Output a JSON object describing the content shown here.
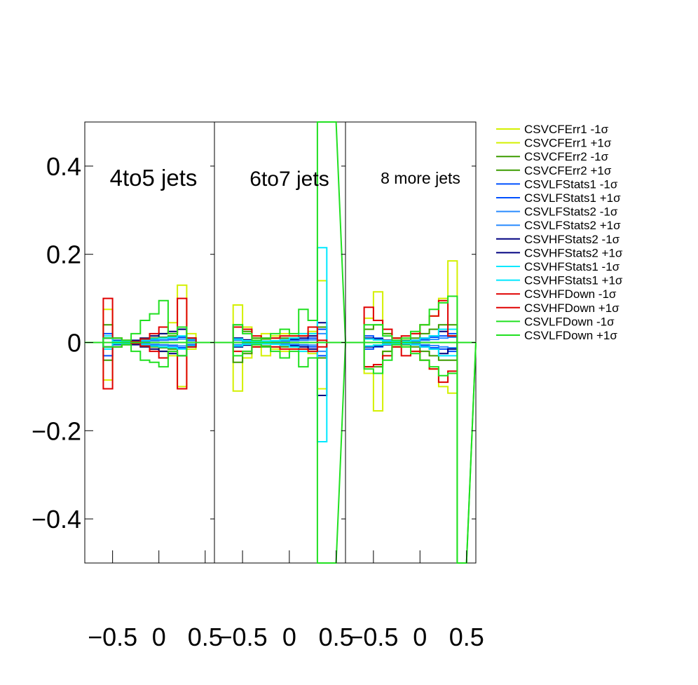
{
  "chart_data": {
    "type": "line",
    "ylim": [
      -0.5,
      0.5
    ],
    "y_ticks": [
      {
        "value": 0.4,
        "label": "0.4"
      },
      {
        "value": 0.2,
        "label": "0.2"
      },
      {
        "value": 0,
        "label": "0"
      },
      {
        "value": -0.2,
        "label": "−0.2"
      },
      {
        "value": -0.4,
        "label": "−0.4"
      }
    ],
    "x_ticks": [
      {
        "value": -0.5,
        "label": "−0.5"
      },
      {
        "value": 0,
        "label": "0"
      },
      {
        "value": 0.5,
        "label": "0.5"
      }
    ],
    "xlim": [
      -0.8,
      0.6
    ],
    "bin_edges": [
      -0.8,
      -0.6,
      -0.5,
      -0.4,
      -0.3,
      -0.2,
      -0.1,
      0.0,
      0.1,
      0.2,
      0.3,
      0.4,
      0.5,
      0.6
    ],
    "legend_position": "right",
    "legend": [
      {
        "label": "CSVCFErr1 -1σ",
        "color": "#d4f000"
      },
      {
        "label": "CSVCFErr1 +1σ",
        "color": "#d4f000"
      },
      {
        "label": "CSVCFErr2 -1σ",
        "color": "#3c9c00"
      },
      {
        "label": "CSVCFErr2 +1σ",
        "color": "#3c9c00"
      },
      {
        "label": "CSVLFStats1 -1σ",
        "color": "#0050ff"
      },
      {
        "label": "CSVLFStats1 +1σ",
        "color": "#0050ff"
      },
      {
        "label": "CSVLFStats2 -1σ",
        "color": "#2a8cff"
      },
      {
        "label": "CSVLFStats2 +1σ",
        "color": "#2a8cff"
      },
      {
        "label": "CSVHFStats2 -1σ",
        "color": "#000080"
      },
      {
        "label": "CSVHFStats2 +1σ",
        "color": "#000080"
      },
      {
        "label": "CSVHFStats1 -1σ",
        "color": "#00e8ff"
      },
      {
        "label": "CSVHFStats1 +1σ",
        "color": "#00e8ff"
      },
      {
        "label": "CSVHFDown -1σ",
        "color": "#e00000"
      },
      {
        "label": "CSVHFDown +1σ",
        "color": "#e00000"
      },
      {
        "label": "CSVLFDown -1σ",
        "color": "#20e020"
      },
      {
        "label": "CSVLFDown +1σ",
        "color": "#20e020"
      }
    ],
    "panels": [
      {
        "label": "4to5 jets",
        "series": [
          {
            "color": "#d4f000",
            "values": [
              0,
              0.075,
              0.01,
              0.005,
              0.003,
              0.01,
              0.015,
              0.02,
              0.045,
              0.13,
              0.02,
              0
            ]
          },
          {
            "color": "#d4f000",
            "values": [
              0,
              -0.085,
              -0.01,
              -0.005,
              -0.003,
              -0.01,
              -0.015,
              -0.02,
              -0.03,
              -0.1,
              -0.015,
              0
            ]
          },
          {
            "color": "#3c9c00",
            "values": [
              0,
              0.04,
              0.01,
              0.005,
              0.003,
              0.008,
              0.01,
              0.012,
              0.015,
              0.03,
              0.01,
              0
            ]
          },
          {
            "color": "#3c9c00",
            "values": [
              0,
              -0.04,
              -0.01,
              -0.005,
              -0.003,
              -0.008,
              -0.01,
              -0.012,
              -0.015,
              -0.03,
              -0.01,
              0
            ]
          },
          {
            "color": "#0050ff",
            "values": [
              0,
              0.02,
              0.005,
              0.003,
              0.002,
              0.004,
              0.005,
              0.006,
              0.008,
              0.012,
              0.005,
              0
            ]
          },
          {
            "color": "#0050ff",
            "values": [
              0,
              -0.03,
              -0.005,
              -0.003,
              -0.002,
              -0.004,
              -0.005,
              -0.006,
              -0.008,
              -0.012,
              -0.005,
              0
            ]
          },
          {
            "color": "#2a8cff",
            "values": [
              0,
              0.01,
              0.003,
              0.002,
              0.001,
              0.003,
              0.004,
              0.005,
              0.006,
              0.008,
              0.004,
              0
            ]
          },
          {
            "color": "#2a8cff",
            "values": [
              0,
              -0.01,
              -0.003,
              -0.002,
              -0.001,
              -0.003,
              -0.004,
              -0.005,
              -0.006,
              -0.008,
              -0.004,
              0
            ]
          },
          {
            "color": "#000080",
            "values": [
              0,
              0.01,
              0.004,
              0.003,
              0.005,
              0.01,
              0.015,
              0.02,
              0.025,
              0.03,
              0.01,
              0
            ]
          },
          {
            "color": "#000080",
            "values": [
              0,
              -0.01,
              -0.004,
              -0.003,
              -0.005,
              -0.01,
              -0.015,
              -0.02,
              -0.025,
              -0.03,
              -0.01,
              0
            ]
          },
          {
            "color": "#00e8ff",
            "values": [
              0,
              0.015,
              0.003,
              0.002,
              0.002,
              0.005,
              0.008,
              0.01,
              0.012,
              0.015,
              0.008,
              0
            ]
          },
          {
            "color": "#00e8ff",
            "values": [
              0,
              -0.015,
              -0.003,
              -0.002,
              -0.002,
              -0.005,
              -0.008,
              -0.01,
              -0.012,
              -0.015,
              -0.008,
              0
            ]
          },
          {
            "color": "#e00000",
            "values": [
              0,
              0.1,
              0.01,
              0.005,
              0.002,
              0.008,
              0.02,
              0.035,
              0.02,
              0.1,
              0.01,
              0
            ]
          },
          {
            "color": "#e00000",
            "values": [
              0,
              -0.105,
              -0.01,
              -0.005,
              -0.002,
              -0.008,
              -0.02,
              -0.035,
              -0.02,
              -0.105,
              -0.01,
              0
            ]
          },
          {
            "color": "#20e020",
            "values": [
              0,
              0.01,
              0.01,
              0.005,
              0.02,
              0.05,
              0.065,
              0.095,
              0.02,
              0.035,
              0,
              0
            ]
          },
          {
            "color": "#20e020",
            "values": [
              0,
              -0.01,
              -0.01,
              -0.005,
              -0.02,
              -0.04,
              -0.045,
              -0.055,
              -0.02,
              -0.03,
              0,
              0
            ]
          }
        ]
      },
      {
        "label": "6to7 jets",
        "series": [
          {
            "color": "#d4f000",
            "values": [
              0,
              0.085,
              0.035,
              0.01,
              0.02,
              0.015,
              0.02,
              0.015,
              0.02,
              0.025,
              0.14,
              0
            ]
          },
          {
            "color": "#d4f000",
            "values": [
              0,
              -0.11,
              -0.035,
              -0.01,
              -0.03,
              -0.015,
              -0.02,
              -0.015,
              -0.02,
              -0.025,
              -0.105,
              0
            ]
          },
          {
            "color": "#3c9c00",
            "values": [
              0,
              0.04,
              0.025,
              0.01,
              0.008,
              0.01,
              0.01,
              0.01,
              0.015,
              0.02,
              0.035,
              0
            ]
          },
          {
            "color": "#3c9c00",
            "values": [
              0,
              -0.045,
              -0.025,
              -0.01,
              -0.008,
              -0.01,
              -0.01,
              -0.01,
              -0.015,
              -0.02,
              -0.035,
              0
            ]
          },
          {
            "color": "#0050ff",
            "values": [
              0,
              0.01,
              0.005,
              0.003,
              0.003,
              0.003,
              0.004,
              0.005,
              0.006,
              0.01,
              -0.03,
              0
            ]
          },
          {
            "color": "#0050ff",
            "values": [
              0,
              -0.01,
              -0.005,
              -0.003,
              -0.003,
              -0.003,
              -0.004,
              -0.005,
              -0.006,
              -0.01,
              0.03,
              0
            ]
          },
          {
            "color": "#2a8cff",
            "values": [
              0,
              0.005,
              0.003,
              0.002,
              0.002,
              0.002,
              0.003,
              0.004,
              0.005,
              0.006,
              0.02,
              0
            ]
          },
          {
            "color": "#2a8cff",
            "values": [
              0,
              -0.005,
              -0.003,
              -0.002,
              -0.002,
              -0.002,
              -0.003,
              -0.004,
              -0.005,
              -0.006,
              -0.02,
              0
            ]
          },
          {
            "color": "#000080",
            "values": [
              0,
              0.01,
              0.006,
              0.004,
              0.003,
              0.004,
              0.006,
              0.008,
              0.01,
              0.015,
              0.045,
              0
            ]
          },
          {
            "color": "#000080",
            "values": [
              0,
              -0.01,
              -0.006,
              -0.004,
              -0.003,
              -0.004,
              -0.006,
              -0.008,
              -0.01,
              -0.015,
              -0.12,
              0
            ]
          },
          {
            "color": "#00e8ff",
            "values": [
              0,
              0.008,
              0.004,
              0.003,
              0.003,
              0.004,
              0.006,
              0.01,
              0.02,
              0.02,
              0.215,
              0
            ]
          },
          {
            "color": "#00e8ff",
            "values": [
              0,
              -0.008,
              -0.004,
              -0.003,
              -0.003,
              -0.004,
              -0.006,
              -0.01,
              -0.02,
              -0.02,
              -0.225,
              0
            ]
          },
          {
            "color": "#e00000",
            "values": [
              0,
              0.035,
              0.03,
              0.015,
              0.01,
              0.01,
              0.015,
              0.015,
              0.015,
              0.035,
              -0.01,
              0
            ]
          },
          {
            "color": "#e00000",
            "values": [
              0,
              -0.02,
              -0.02,
              -0.01,
              -0.01,
              -0.01,
              -0.015,
              -0.015,
              -0.015,
              -0.02,
              0.005,
              0
            ]
          },
          {
            "color": "#20e020",
            "values": [
              0,
              0.04,
              0.02,
              0.005,
              0.01,
              0.02,
              0.03,
              0.02,
              0.075,
              0.05,
              0.55,
              0.55
            ]
          },
          {
            "color": "#20e020",
            "values": [
              0,
              -0.03,
              -0.02,
              -0.005,
              -0.01,
              -0.02,
              -0.035,
              -0.02,
              -0.055,
              -0.035,
              -0.55,
              -0.55
            ]
          }
        ]
      },
      {
        "label": "8 more jets",
        "series": [
          {
            "color": "#d4f000",
            "values": [
              0,
              0.055,
              0.115,
              0.02,
              0.01,
              0.01,
              0.02,
              0.04,
              0.06,
              0.1,
              0.185,
              0
            ]
          },
          {
            "color": "#d4f000",
            "values": [
              0,
              -0.07,
              -0.155,
              -0.02,
              -0.01,
              -0.01,
              -0.02,
              -0.04,
              -0.06,
              -0.1,
              -0.115,
              0
            ]
          },
          {
            "color": "#3c9c00",
            "values": [
              0,
              0.03,
              0.04,
              0.02,
              0.01,
              0.005,
              0.01,
              0.02,
              0.03,
              0.04,
              0.04,
              0
            ]
          },
          {
            "color": "#3c9c00",
            "values": [
              0,
              -0.055,
              -0.055,
              -0.02,
              -0.01,
              -0.005,
              -0.01,
              -0.02,
              -0.03,
              -0.04,
              -0.04,
              0
            ]
          },
          {
            "color": "#0050ff",
            "values": [
              0,
              0.015,
              0.01,
              0.005,
              0.003,
              0.003,
              0.005,
              0.008,
              0.012,
              0.015,
              0.02,
              0
            ]
          },
          {
            "color": "#0050ff",
            "values": [
              0,
              -0.015,
              -0.01,
              -0.005,
              -0.003,
              -0.003,
              -0.005,
              -0.008,
              -0.012,
              -0.015,
              -0.02,
              0
            ]
          },
          {
            "color": "#2a8cff",
            "values": [
              0,
              0.008,
              0.006,
              0.003,
              0.002,
              0.002,
              0.003,
              0.005,
              0.007,
              0.01,
              0.012,
              0
            ]
          },
          {
            "color": "#2a8cff",
            "values": [
              0,
              -0.008,
              -0.006,
              -0.003,
              -0.002,
              -0.002,
              -0.003,
              -0.005,
              -0.007,
              -0.01,
              -0.012,
              0
            ]
          },
          {
            "color": "#000080",
            "values": [
              0,
              0.01,
              0.008,
              0.005,
              0.003,
              0.003,
              0.005,
              0.01,
              0.015,
              0.025,
              0.015,
              0
            ]
          },
          {
            "color": "#000080",
            "values": [
              0,
              -0.01,
              -0.008,
              -0.005,
              -0.003,
              -0.003,
              -0.005,
              -0.01,
              -0.015,
              -0.025,
              -0.015,
              0
            ]
          },
          {
            "color": "#00e8ff",
            "values": [
              0,
              0.008,
              0.006,
              0.004,
              0.003,
              0.003,
              0.005,
              0.01,
              0.015,
              0.03,
              0.03,
              0
            ]
          },
          {
            "color": "#00e8ff",
            "values": [
              0,
              -0.008,
              -0.006,
              -0.004,
              -0.003,
              -0.003,
              -0.005,
              -0.01,
              -0.015,
              -0.03,
              -0.03,
              0
            ]
          },
          {
            "color": "#e00000",
            "values": [
              0,
              0.08,
              0.05,
              0.03,
              0.01,
              -0.03,
              -0.02,
              -0.04,
              -0.06,
              -0.09,
              -0.065,
              0
            ]
          },
          {
            "color": "#e00000",
            "values": [
              0,
              -0.055,
              -0.05,
              -0.03,
              -0.01,
              0.015,
              0.02,
              0.04,
              0.06,
              0.095,
              0.015,
              0
            ]
          },
          {
            "color": "#20e020",
            "values": [
              0,
              0.04,
              0.04,
              0.015,
              0.005,
              0.01,
              0.025,
              0.04,
              0.075,
              0.09,
              0.105,
              -0.5
            ]
          },
          {
            "color": "#20e020",
            "values": [
              0,
              -0.06,
              -0.07,
              -0.04,
              -0.005,
              -0.01,
              -0.025,
              -0.04,
              -0.055,
              -0.075,
              -0.07,
              -0.5
            ]
          }
        ]
      }
    ]
  }
}
